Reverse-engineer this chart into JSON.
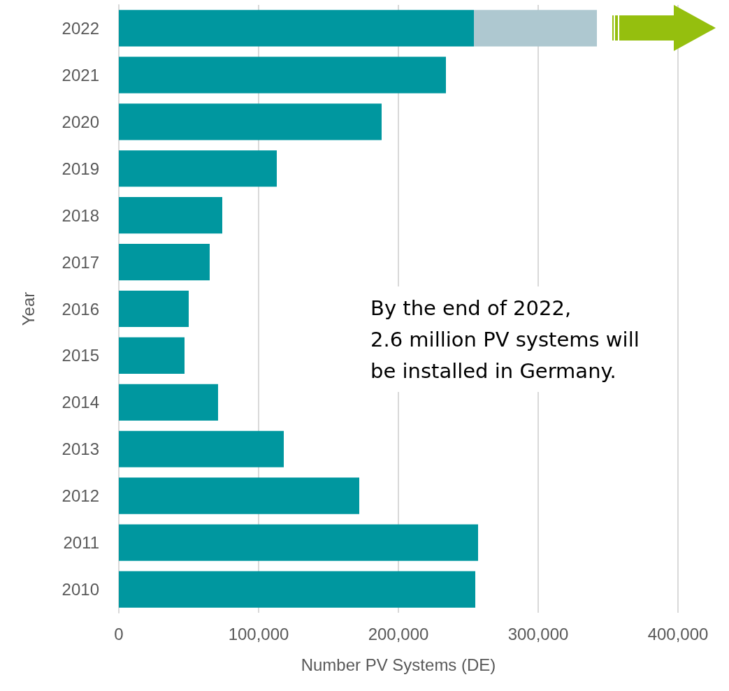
{
  "chart_data": {
    "type": "bar",
    "orientation": "horizontal",
    "stacked": true,
    "xlabel": "Number PV Systems (DE)",
    "ylabel": "Year",
    "categories": [
      "2022",
      "2021",
      "2020",
      "2019",
      "2018",
      "2017",
      "2016",
      "2015",
      "2014",
      "2013",
      "2012",
      "2011",
      "2010"
    ],
    "series": [
      {
        "color": "#00979f",
        "values": [
          254000,
          234000,
          188000,
          113000,
          74000,
          65000,
          50000,
          47000,
          71000,
          118000,
          172000,
          257000,
          255000
        ]
      },
      {
        "color": "#aec8d0",
        "values": [
          88000,
          null,
          null,
          null,
          null,
          null,
          null,
          null,
          null,
          null,
          null,
          null,
          null
        ]
      }
    ],
    "xlim": [
      0,
      400000
    ],
    "xticks": [
      0,
      {
        "value": 100000,
        "label": "100,000"
      },
      {
        "value": 200000,
        "label": "200,000"
      },
      {
        "value": 300000,
        "label": "300,000"
      },
      {
        "value": 400000,
        "label": "400,000"
      }
    ],
    "grid": "x",
    "annotations": [
      "By the end of 2022,\n2.6 million PV systems will\nbe installed in Germany."
    ]
  }
}
